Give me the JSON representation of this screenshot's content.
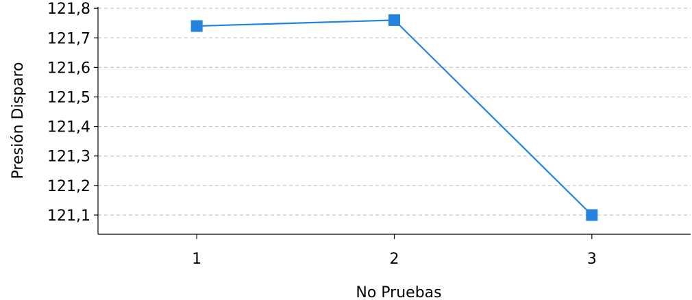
{
  "chart_data": {
    "type": "line",
    "title": "",
    "xlabel": "No Pruebas",
    "ylabel": "Presión Disparo",
    "x": [
      1,
      2,
      3
    ],
    "x_tick_labels": [
      "1",
      "2",
      "3"
    ],
    "series": [
      {
        "values": [
          121.74,
          121.76,
          121.1
        ],
        "color": "#2383df",
        "marker": "square"
      }
    ],
    "y_ticks": [
      121.1,
      121.2,
      121.3,
      121.4,
      121.5,
      121.6,
      121.7,
      121.8
    ],
    "y_tick_labels": [
      "121,1",
      "121,2",
      "121,3",
      "121,4",
      "121,5",
      "121,6",
      "121,7",
      "121,8"
    ],
    "xlim": [
      0.5,
      3.5
    ],
    "ylim": [
      121.035,
      121.805
    ],
    "grid": {
      "y_major": true,
      "style": "dashed",
      "color": "#c8c8c8"
    },
    "legend": "none"
  }
}
